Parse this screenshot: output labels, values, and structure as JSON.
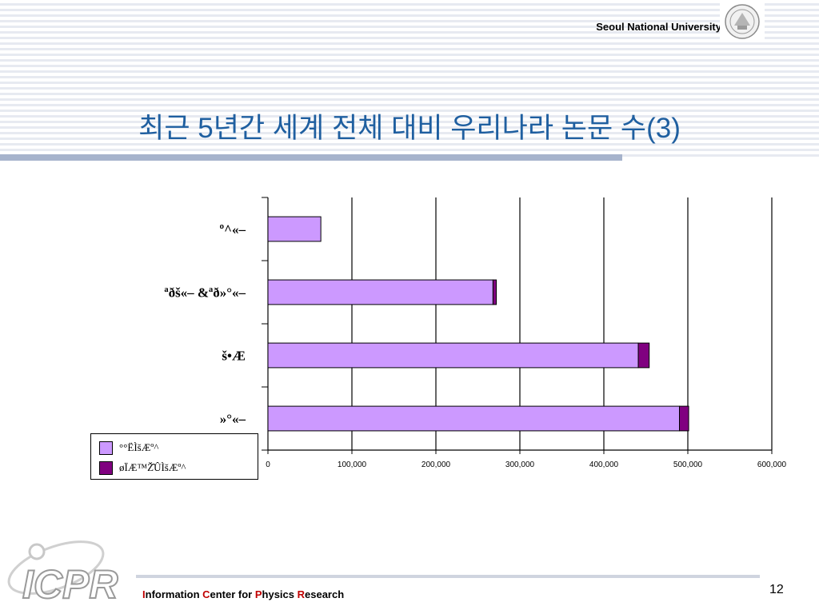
{
  "header": {
    "university": "Seoul National University",
    "title": "최근 5년간 세계 전체 대비 우리나라 논문 수(3)"
  },
  "colors": {
    "title": "#1f5fa0",
    "series_1": "#cc99ff",
    "series_2": "#800080",
    "footer_accent": "#c00000"
  },
  "chart_data": {
    "type": "bar",
    "orientation": "horizontal",
    "stacked": true,
    "categories": [
      "º^«–",
      "ªðš«–  &ªð»°«–",
      "š•Æ",
      "»°«–"
    ],
    "series": [
      {
        "name": "°°ËÌšÆº^",
        "values": [
          63000,
          268000,
          441000,
          490000
        ]
      },
      {
        "name": "øÏÆ™Ž̂ÛÌšÆº^",
        "values": [
          0,
          4000,
          13000,
          11000
        ]
      }
    ],
    "xlim": [
      0,
      600000
    ],
    "xticks": [
      "0",
      "100,000",
      "200,000",
      "300,000",
      "400,000",
      "500,000",
      "600,000"
    ],
    "grid": "vertical",
    "legend": "bottom-left"
  },
  "footer": {
    "logo": "ICPR",
    "org_parts": [
      {
        "text": "I",
        "accent": true
      },
      {
        "text": "nformation ",
        "accent": false
      },
      {
        "text": "C",
        "accent": true
      },
      {
        "text": "enter for ",
        "accent": false
      },
      {
        "text": "P",
        "accent": true
      },
      {
        "text": "hysics ",
        "accent": false
      },
      {
        "text": "R",
        "accent": true
      },
      {
        "text": "esearch",
        "accent": false
      }
    ],
    "page_number": "12"
  }
}
